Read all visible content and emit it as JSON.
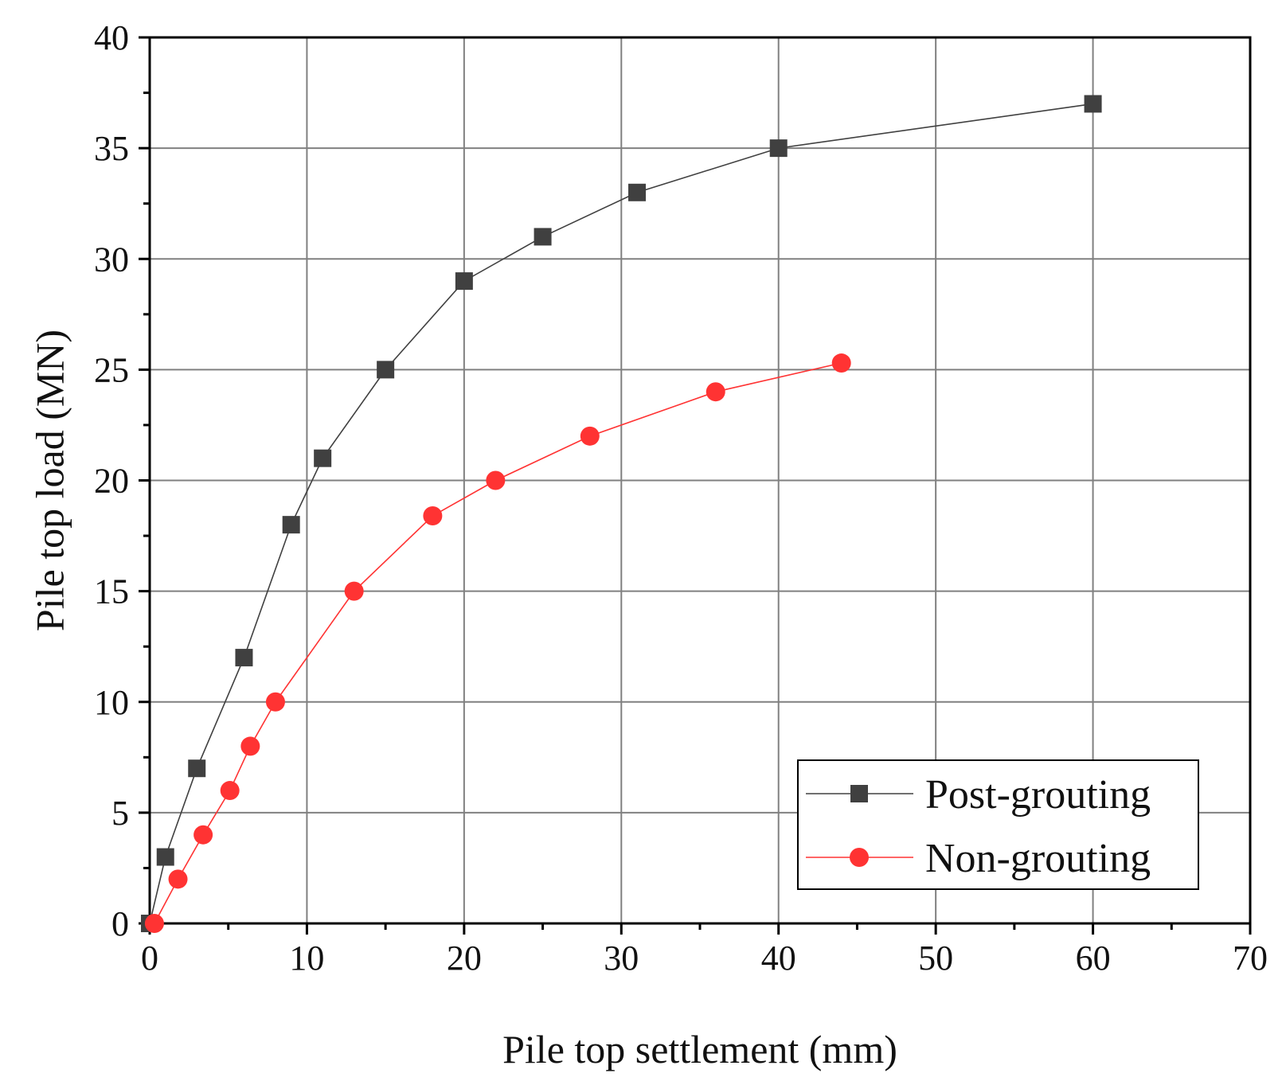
{
  "chart_data": {
    "type": "line",
    "title": "",
    "xlabel": "Pile top settlement (mm)",
    "ylabel": "Pile top load (MN)",
    "xlim": [
      0,
      70
    ],
    "ylim": [
      0,
      40
    ],
    "xticks": [
      "0",
      "10",
      "20",
      "30",
      "40",
      "50",
      "60",
      "70"
    ],
    "yticks": [
      "0",
      "5",
      "10",
      "15",
      "20",
      "25",
      "30",
      "35",
      "40"
    ],
    "grid": true,
    "legend_position": "bottom-right",
    "series": [
      {
        "name": "Post-grouting",
        "color": "#404040",
        "marker": "square",
        "x": [
          0,
          1,
          3,
          6,
          9,
          11,
          15,
          20,
          25,
          31,
          40,
          60
        ],
        "y": [
          0,
          3,
          7,
          12,
          18,
          21,
          25,
          29,
          31,
          33,
          35,
          37
        ]
      },
      {
        "name": "Non-grouting",
        "color": "#ff3333",
        "marker": "circle",
        "x": [
          0.3,
          1.8,
          3.4,
          5.1,
          6.4,
          8,
          13,
          18,
          22,
          28,
          36,
          44
        ],
        "y": [
          0,
          2,
          4,
          6,
          8,
          10,
          15,
          18.4,
          20,
          22,
          24,
          25.3
        ]
      }
    ]
  }
}
